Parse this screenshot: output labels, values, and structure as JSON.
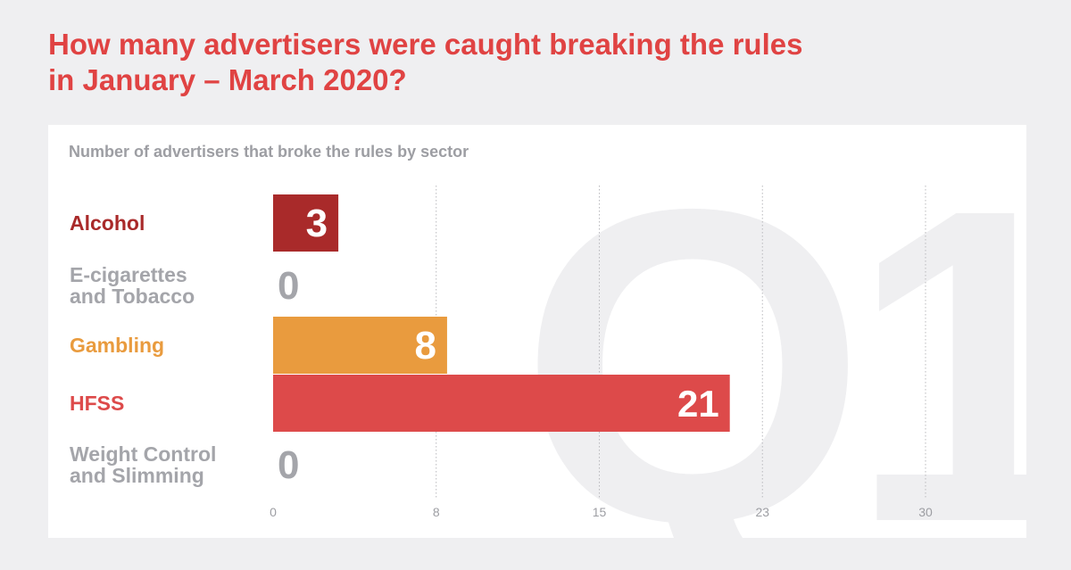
{
  "title": {
    "line1": "How many advertisers were caught breaking the rules",
    "line2": "in January – March 2020?"
  },
  "watermark": "Q1",
  "colors": {
    "title": "#e04343",
    "alcohol": "#a92a2a",
    "gambling": "#e99b3e",
    "hfss": "#dd4a4a",
    "zero": "#a4a5aa",
    "grid": "#b9b9bd",
    "tick": "#9d9ea3"
  },
  "chart_data": {
    "type": "bar",
    "orientation": "horizontal",
    "title": "Number of advertisers that broke the rules by sector",
    "categories": [
      "Alcohol",
      "E-cigarettes and Tobacco",
      "Gambling",
      "HFSS",
      "Weight Control and Slimming"
    ],
    "category_lines": [
      [
        "Alcohol"
      ],
      [
        "E-cigarettes",
        "and Tobacco"
      ],
      [
        "Gambling"
      ],
      [
        "HFSS"
      ],
      [
        "Weight Control",
        "and Slimming"
      ]
    ],
    "values": [
      3,
      0,
      8,
      21,
      0
    ],
    "value_labels": [
      "3",
      "0",
      "8",
      "21",
      "0"
    ],
    "bar_colors": [
      "#a92a2a",
      "#a4a5aa",
      "#e99b3e",
      "#dd4a4a",
      "#a4a5aa"
    ],
    "xlim": [
      0,
      30
    ],
    "x_ticks": [
      0,
      7.5,
      15,
      22.5,
      30
    ],
    "x_tick_labels": [
      "0",
      "8",
      "15",
      "23",
      "30"
    ],
    "grid": "vertical dotted lines at x ticks",
    "legend": "none",
    "xlabel": "",
    "ylabel": ""
  }
}
